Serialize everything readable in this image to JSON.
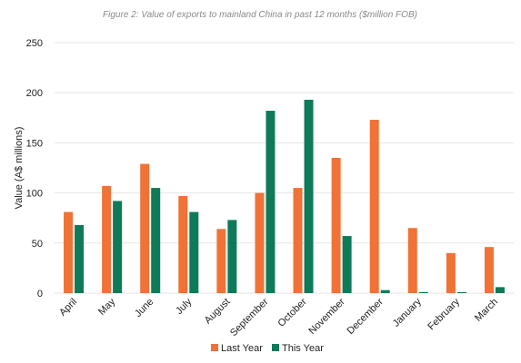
{
  "chart_data": {
    "type": "bar",
    "title": "Figure 2: Value of exports to mainland China in past 12 months ($million FOB)",
    "xlabel": "",
    "ylabel": "Value (A$ millions)",
    "ylim": [
      0,
      250
    ],
    "yticks": [
      0,
      50,
      100,
      150,
      200,
      250
    ],
    "grid": true,
    "legend_position": "bottom",
    "categories": [
      "April",
      "May",
      "June",
      "July",
      "August",
      "September",
      "October",
      "November",
      "December",
      "January",
      "February",
      "March"
    ],
    "series": [
      {
        "name": "Last Year",
        "color": "#f07236",
        "values": [
          81,
          107,
          129,
          97,
          64,
          100,
          105,
          135,
          173,
          65,
          40,
          46
        ]
      },
      {
        "name": "This Year",
        "color": "#0f7a5a",
        "values": [
          68,
          92,
          105,
          81,
          73,
          182,
          193,
          57,
          3,
          1,
          1,
          6
        ]
      }
    ]
  }
}
